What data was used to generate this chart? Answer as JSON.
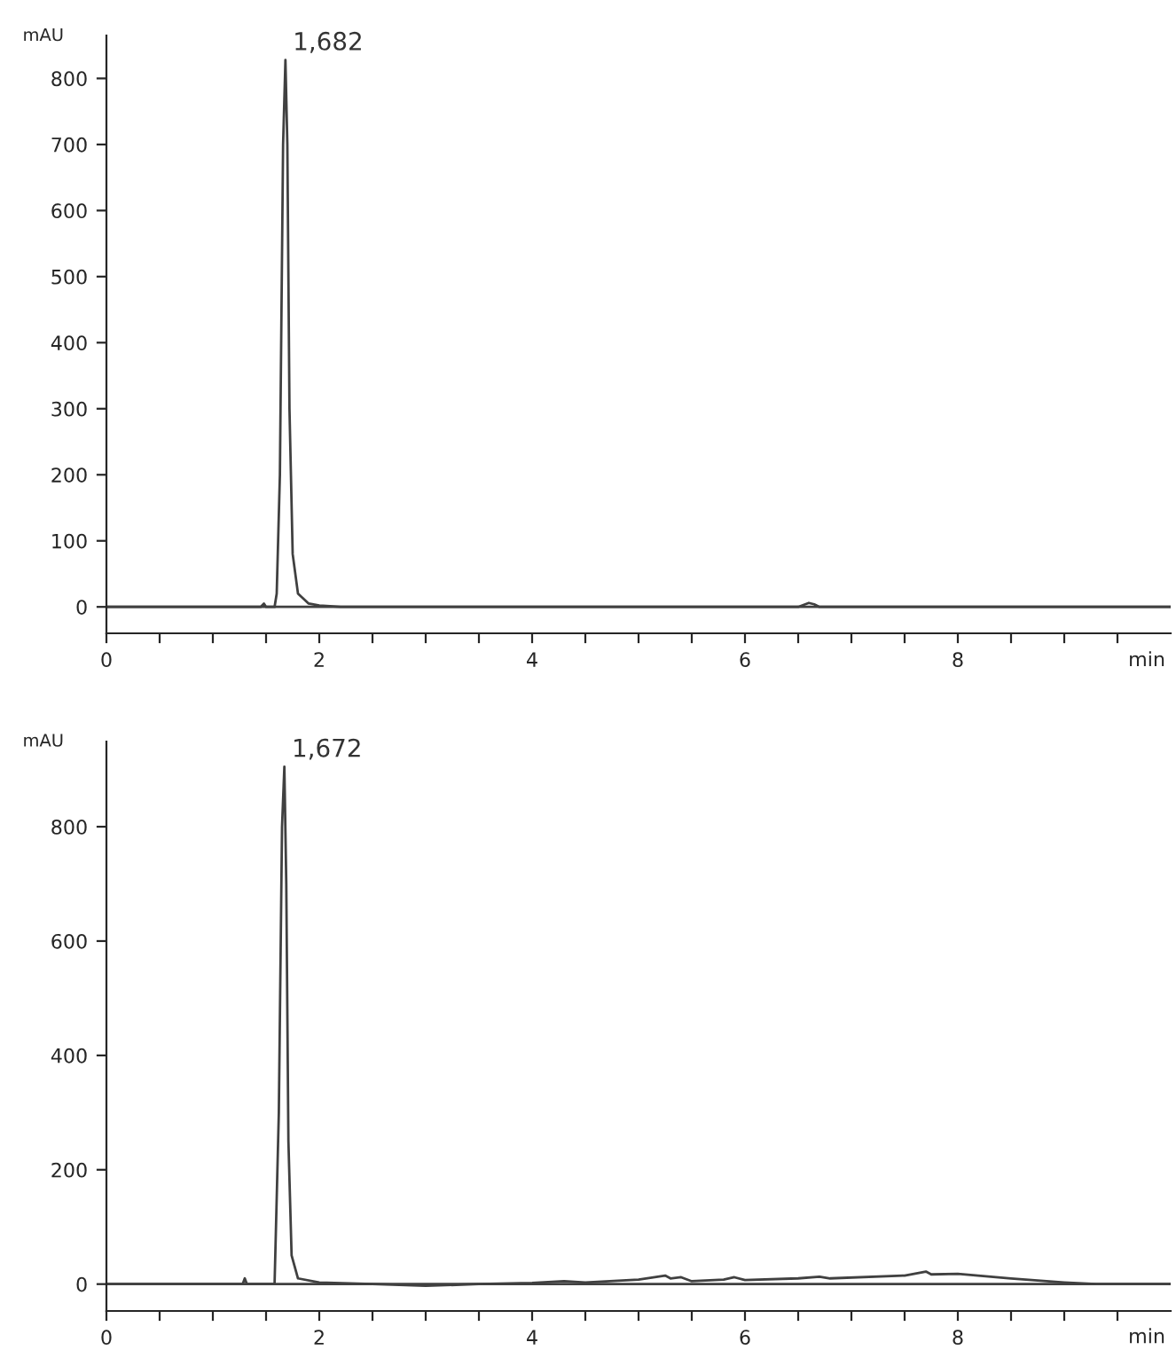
{
  "chart_data": [
    {
      "type": "line",
      "xlabel": "min",
      "ylabel": "mAU",
      "xlim": [
        0,
        10
      ],
      "ylim": [
        -40,
        865
      ],
      "xticks": [
        0,
        {
          "value": 0.5,
          "label": null
        },
        {
          "value": 1,
          "label": null
        },
        {
          "value": 1.5,
          "label": null
        },
        2,
        {
          "value": 2.5,
          "label": null
        },
        {
          "value": 3,
          "label": null
        },
        {
          "value": 3.5,
          "label": null
        },
        4,
        {
          "value": 4.5,
          "label": null
        },
        {
          "value": 5,
          "label": null
        },
        {
          "value": 5.5,
          "label": null
        },
        6,
        {
          "value": 6.5,
          "label": null
        },
        {
          "value": 7,
          "label": null
        },
        {
          "value": 7.5,
          "label": null
        },
        8,
        {
          "value": 8.5,
          "label": null
        },
        {
          "value": 9,
          "label": null
        },
        {
          "value": 9.5,
          "label": null
        }
      ],
      "yticks": [
        0,
        100,
        200,
        300,
        400,
        500,
        600,
        700,
        800
      ],
      "grid": false,
      "marker": "none",
      "line_style": "solid",
      "series": [
        {
          "color": "#404040",
          "x": [
            0,
            1.45,
            1.48,
            1.5,
            1.58,
            1.6,
            1.63,
            1.66,
            1.682,
            1.7,
            1.72,
            1.75,
            1.8,
            1.9,
            2.0,
            2.2,
            6.5,
            6.6,
            6.65,
            6.7,
            10
          ],
          "values": [
            0,
            0,
            5,
            0,
            0,
            20,
            200,
            700,
            828,
            700,
            300,
            80,
            20,
            5,
            2,
            0,
            0,
            6,
            4,
            0,
            0
          ]
        }
      ],
      "ref_lines": [
        {
          "axis": "y",
          "value": 0,
          "color": "#404040"
        }
      ],
      "annotations": [
        {
          "text": "1,682",
          "x": 1.682,
          "y": 828
        }
      ]
    },
    {
      "type": "line",
      "xlabel": "min",
      "ylabel": "mAU",
      "xlim": [
        0,
        10
      ],
      "ylim": [
        -47,
        949
      ],
      "xticks": [
        0,
        {
          "value": 0.5,
          "label": null
        },
        {
          "value": 1,
          "label": null
        },
        {
          "value": 1.5,
          "label": null
        },
        2,
        {
          "value": 2.5,
          "label": null
        },
        {
          "value": 3,
          "label": null
        },
        {
          "value": 3.5,
          "label": null
        },
        4,
        {
          "value": 4.5,
          "label": null
        },
        {
          "value": 5,
          "label": null
        },
        {
          "value": 5.5,
          "label": null
        },
        6,
        {
          "value": 6.5,
          "label": null
        },
        {
          "value": 7,
          "label": null
        },
        {
          "value": 7.5,
          "label": null
        },
        8,
        {
          "value": 8.5,
          "label": null
        },
        {
          "value": 9,
          "label": null
        },
        {
          "value": 9.5,
          "label": null
        }
      ],
      "yticks": [
        0,
        200,
        400,
        600,
        800
      ],
      "grid": false,
      "marker": "none",
      "line_style": "solid",
      "series": [
        {
          "color": "#404040",
          "x": [
            0,
            1.28,
            1.3,
            1.32,
            1.58,
            1.62,
            1.65,
            1.672,
            1.69,
            1.71,
            1.74,
            1.8,
            2.0,
            2.5,
            3.0,
            3.5,
            4.0,
            4.3,
            4.5,
            5.0,
            5.25,
            5.3,
            5.4,
            5.5,
            5.8,
            5.9,
            6.0,
            6.5,
            6.7,
            6.8,
            7.5,
            7.7,
            7.75,
            8.0,
            8.5,
            9.0,
            9.3,
            10
          ],
          "values": [
            0,
            0,
            10,
            0,
            0,
            300,
            800,
            905,
            700,
            250,
            50,
            10,
            3,
            0,
            -3,
            0,
            2,
            5,
            3,
            8,
            15,
            10,
            12,
            5,
            8,
            12,
            7,
            10,
            13,
            10,
            15,
            22,
            17,
            18,
            10,
            3,
            0,
            0
          ]
        }
      ],
      "ref_lines": [
        {
          "axis": "y",
          "value": 0,
          "color": "#404040"
        }
      ],
      "annotations": [
        {
          "text": "1,672",
          "x": 1.672,
          "y": 905
        }
      ]
    }
  ]
}
